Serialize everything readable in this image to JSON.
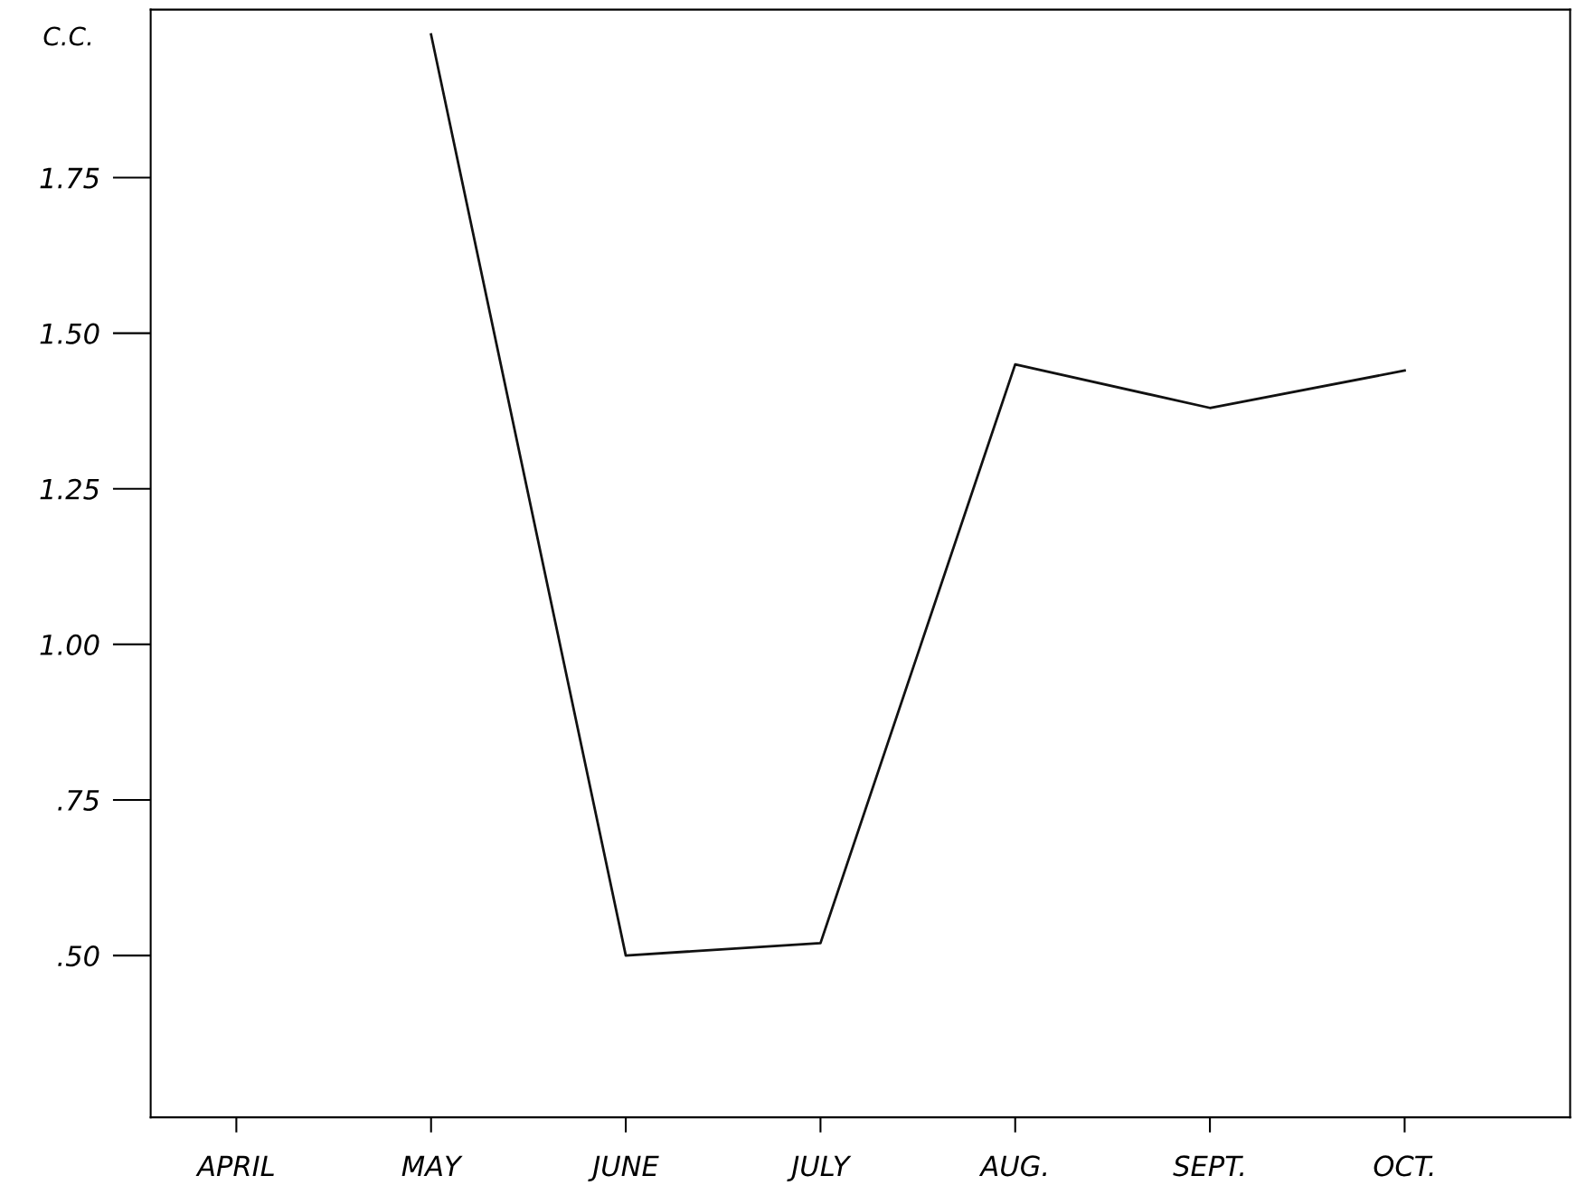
{
  "chart_data": {
    "type": "line",
    "ylabel": "C.C.",
    "categories": [
      "APRIL",
      "MAY",
      "JUNE",
      "JULY",
      "AUG.",
      "SEPT.",
      "OCT."
    ],
    "series": [
      {
        "color": "#111111",
        "values": [
          null,
          1.98,
          0.5,
          0.52,
          1.45,
          1.38,
          1.44
        ]
      }
    ],
    "ylim": [
      0.24,
      2.02
    ],
    "yticks": [
      {
        "value": 0.5,
        "label": ".50"
      },
      {
        "value": 0.75,
        "label": ".75"
      },
      {
        "value": 1.0,
        "label": "1.00"
      },
      {
        "value": 1.25,
        "label": "1.25"
      },
      {
        "value": 1.5,
        "label": "1.50"
      },
      {
        "value": 1.75,
        "label": "1.75"
      }
    ],
    "grid": false,
    "legend": false,
    "marker": "none",
    "line_style": "solid"
  }
}
